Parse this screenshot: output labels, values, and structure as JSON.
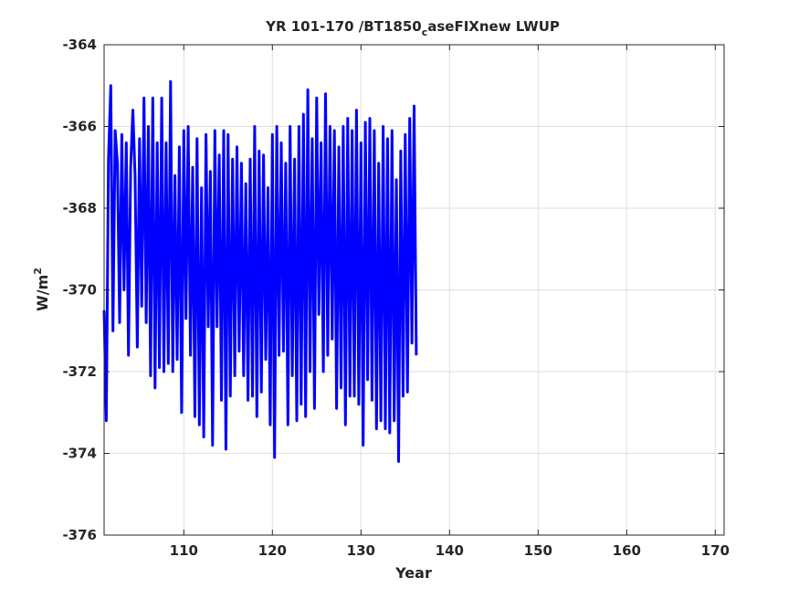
{
  "chart_data": {
    "type": "line",
    "title_main": "YR 101-170 /BT1850",
    "title_sub": "c",
    "title_tail": "aseFIXnew LWUP",
    "xlabel": "Year",
    "ylabel_base": "W/m",
    "ylabel_sup": "2",
    "xlim": [
      101,
      171
    ],
    "ylim": [
      -376,
      -364
    ],
    "xticks": [
      110,
      120,
      130,
      140,
      150,
      160,
      170
    ],
    "yticks": [
      -376,
      -374,
      -372,
      -370,
      -368,
      -366,
      -364
    ],
    "grid": true,
    "series": [
      {
        "color": "#0000ff",
        "points_per_year": 4,
        "x_start": 101,
        "values": [
          -370.5,
          -373.2,
          -366.8,
          -365.0,
          -371.0,
          -366.1,
          -366.9,
          -370.8,
          -366.2,
          -370.0,
          -366.4,
          -371.6,
          -367.0,
          -365.6,
          -367.2,
          -371.4,
          -366.3,
          -370.4,
          -365.3,
          -370.8,
          -366.0,
          -372.1,
          -365.3,
          -372.4,
          -366.4,
          -371.9,
          -365.3,
          -372.0,
          -366.4,
          -371.8,
          -364.9,
          -372.0,
          -367.2,
          -371.7,
          -366.5,
          -373.0,
          -366.1,
          -370.7,
          -366.0,
          -371.6,
          -367.0,
          -373.1,
          -366.3,
          -373.3,
          -367.5,
          -373.6,
          -366.2,
          -370.9,
          -367.1,
          -373.8,
          -366.1,
          -370.9,
          -366.7,
          -372.7,
          -366.1,
          -373.9,
          -366.2,
          -372.6,
          -366.8,
          -372.1,
          -366.5,
          -371.5,
          -366.9,
          -372.1,
          -367.4,
          -372.7,
          -366.8,
          -372.6,
          -366.0,
          -373.1,
          -366.6,
          -372.5,
          -366.7,
          -371.7,
          -367.5,
          -373.3,
          -366.2,
          -374.1,
          -366.0,
          -371.6,
          -366.4,
          -371.5,
          -366.9,
          -373.3,
          -366.0,
          -372.1,
          -366.8,
          -373.2,
          -366.0,
          -372.8,
          -365.7,
          -373.1,
          -365.1,
          -372.0,
          -366.3,
          -372.9,
          -365.3,
          -370.6,
          -366.4,
          -372.0,
          -365.2,
          -371.6,
          -366.0,
          -371.2,
          -366.1,
          -372.9,
          -366.5,
          -372.4,
          -366.0,
          -373.3,
          -365.8,
          -372.6,
          -366.1,
          -372.6,
          -365.6,
          -372.8,
          -366.4,
          -373.8,
          -365.9,
          -372.2,
          -365.8,
          -372.7,
          -366.1,
          -373.4,
          -366.9,
          -373.2,
          -366.0,
          -373.4,
          -366.3,
          -373.5,
          -366.1,
          -373.2,
          -367.3,
          -374.2,
          -366.6,
          -372.6,
          -366.2,
          -372.5,
          -365.8,
          -371.3,
          -365.5,
          -371.6
        ]
      }
    ]
  }
}
